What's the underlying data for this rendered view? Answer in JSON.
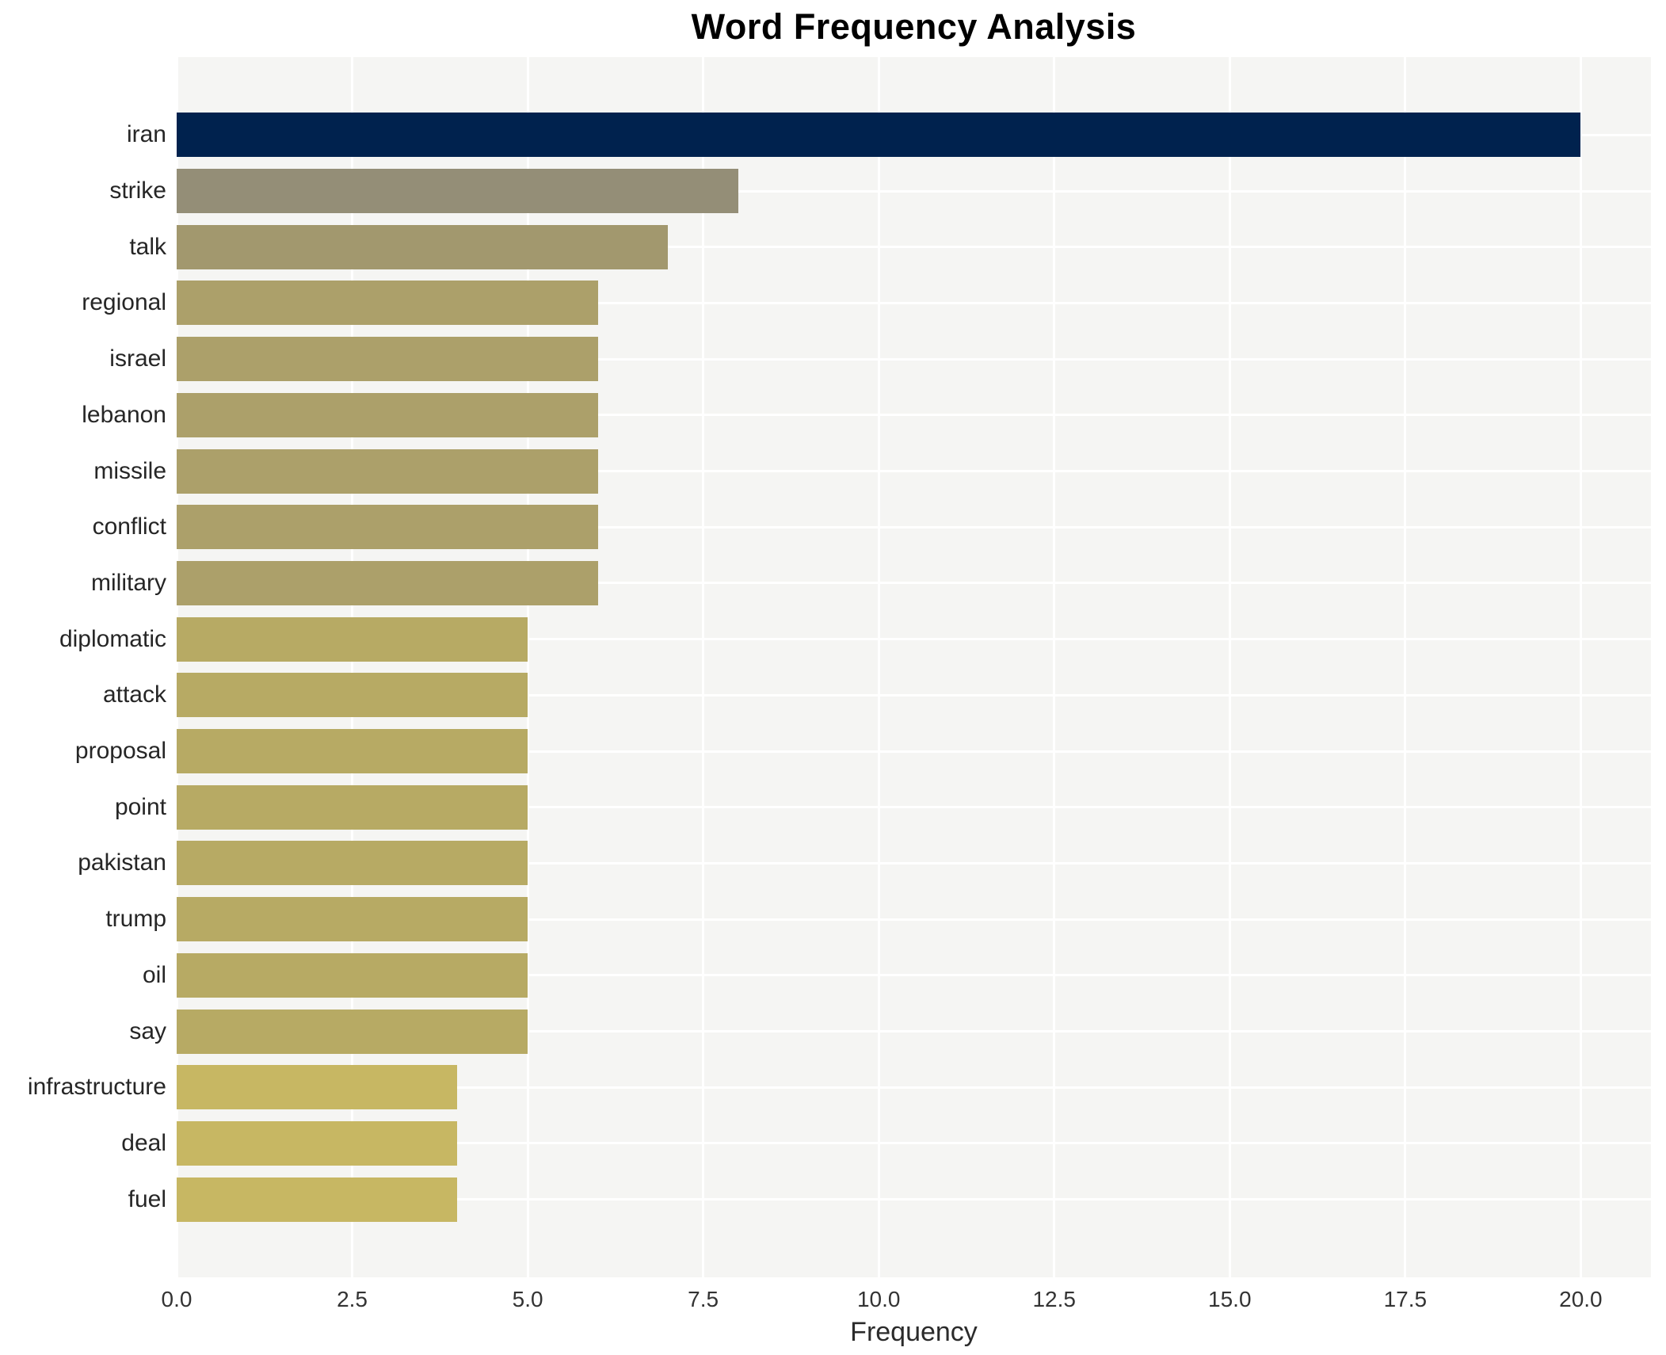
{
  "chart_data": {
    "type": "bar",
    "orientation": "horizontal",
    "title": "Word Frequency Analysis",
    "xlabel": "Frequency",
    "ylabel": "",
    "categories": [
      "iran",
      "strike",
      "talk",
      "regional",
      "israel",
      "lebanon",
      "missile",
      "conflict",
      "military",
      "diplomatic",
      "attack",
      "proposal",
      "point",
      "pakistan",
      "trump",
      "oil",
      "say",
      "infrastructure",
      "deal",
      "fuel"
    ],
    "values": [
      20,
      8,
      7,
      6,
      6,
      6,
      6,
      6,
      6,
      5,
      5,
      5,
      5,
      5,
      5,
      5,
      5,
      4,
      4,
      4
    ],
    "bar_colors": [
      "#00224e",
      "#948e77",
      "#a2986e",
      "#aca06a",
      "#aca06a",
      "#aca06a",
      "#aca06a",
      "#aca06a",
      "#aca06a",
      "#b7aa64",
      "#b7aa64",
      "#b7aa64",
      "#b7aa64",
      "#b7aa64",
      "#b7aa64",
      "#b7aa64",
      "#b7aa64",
      "#c7b763",
      "#c7b763",
      "#c7b763"
    ],
    "xlim": [
      0,
      21
    ],
    "x_ticks": [
      {
        "value": 0,
        "label": "0.0"
      },
      {
        "value": 2.5,
        "label": "2.5"
      },
      {
        "value": 5,
        "label": "5.0"
      },
      {
        "value": 7.5,
        "label": "7.5"
      },
      {
        "value": 10,
        "label": "10.0"
      },
      {
        "value": 12.5,
        "label": "12.5"
      },
      {
        "value": 15,
        "label": "15.0"
      },
      {
        "value": 17.5,
        "label": "17.5"
      },
      {
        "value": 20,
        "label": "20.0"
      }
    ],
    "grid": true,
    "legend": false,
    "colors": {
      "plot_background": "#f5f5f3",
      "grid_line": "#ffffff",
      "title_text": "#000000",
      "axis_text": "#262626"
    }
  }
}
